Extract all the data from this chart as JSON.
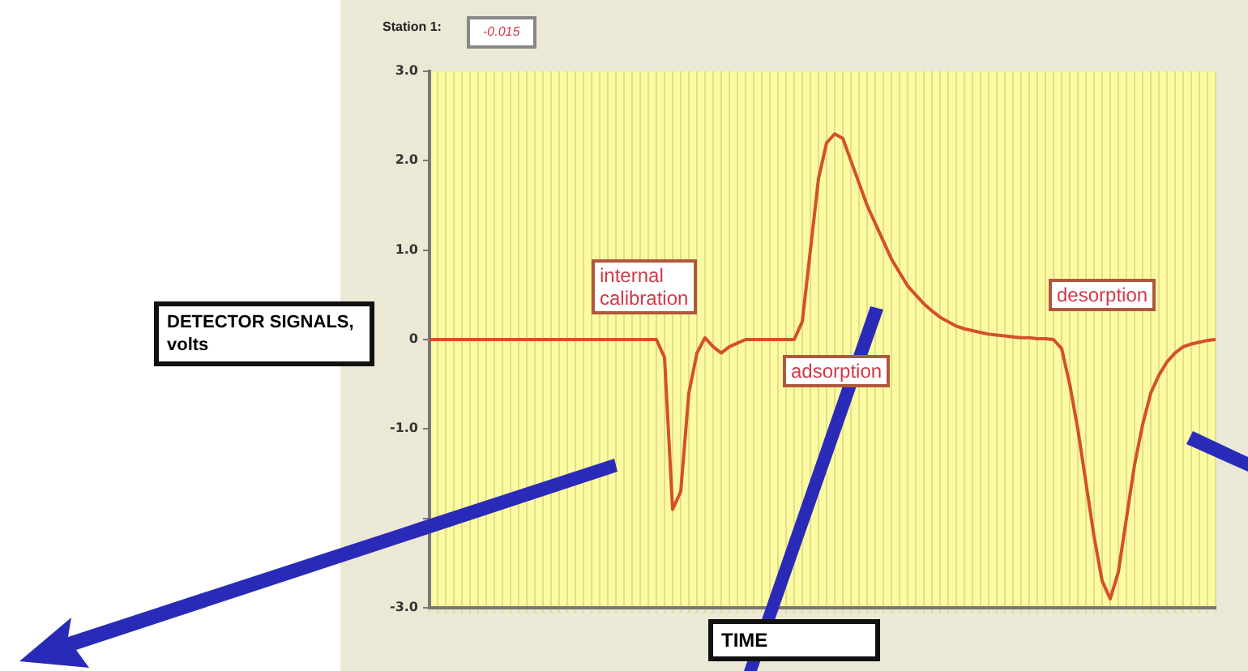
{
  "chart_data": {
    "type": "line",
    "xlabel": "TIME",
    "ylabel": "DETECTOR SIGNALS, volts",
    "annotations": [
      "Station 1:",
      "-0.015",
      "internal calibration",
      "adsorption",
      "desorption"
    ],
    "categories": [
      null,
      null,
      null,
      null,
      null,
      null,
      null,
      null,
      null,
      null,
      null,
      null,
      null,
      null,
      null,
      null,
      null,
      null,
      null,
      null,
      null,
      null,
      null,
      null,
      null,
      null,
      null,
      null,
      null,
      null,
      null,
      null,
      null,
      null,
      null,
      null,
      null,
      null,
      null,
      null,
      null,
      null,
      null,
      null,
      null,
      null,
      null,
      null,
      null,
      null,
      null,
      null,
      null,
      null,
      null,
      null,
      null,
      null,
      null,
      null,
      null,
      null,
      null,
      null,
      null,
      null,
      null,
      null,
      null,
      null,
      null,
      null,
      null,
      null,
      null,
      null,
      null,
      null,
      null,
      null,
      null,
      null,
      null,
      null,
      null,
      null,
      null,
      null,
      null,
      null,
      null,
      null,
      null,
      null,
      null,
      null,
      null,
      null
    ],
    "series": [
      {
        "color": "#d4502a",
        "values": [
          0,
          0,
          0,
          0,
          0,
          0,
          0,
          0,
          0,
          0,
          0,
          0,
          0,
          0,
          0,
          0,
          0,
          0,
          0,
          0,
          0,
          0,
          0,
          0,
          0,
          0,
          0,
          0,
          0,
          -0.2,
          -1.9,
          -1.7,
          -0.6,
          -0.15,
          0.02,
          -0.08,
          -0.15,
          -0.08,
          -0.04,
          0,
          0,
          0,
          0,
          0,
          0,
          0,
          0.2,
          1.0,
          1.8,
          2.2,
          2.3,
          2.25,
          2.0,
          1.75,
          1.5,
          1.3,
          1.1,
          0.9,
          0.75,
          0.6,
          0.5,
          0.4,
          0.32,
          0.25,
          0.2,
          0.15,
          0.12,
          0.1,
          0.08,
          0.06,
          0.05,
          0.04,
          0.03,
          0.02,
          0.02,
          0.01,
          0.01,
          0,
          -0.1,
          -0.5,
          -1.0,
          -1.6,
          -2.2,
          -2.7,
          -2.9,
          -2.6,
          -2.0,
          -1.4,
          -0.95,
          -0.6,
          -0.4,
          -0.25,
          -0.15,
          -0.08,
          -0.05,
          -0.03,
          -0.01,
          0
        ]
      }
    ],
    "ylim": [
      -3,
      3
    ],
    "yticks": [
      {
        "value": 3,
        "label": "3.0"
      },
      {
        "value": 2,
        "label": "2.0"
      },
      {
        "value": 1,
        "label": "1.0"
      },
      0,
      {
        "value": -1,
        "label": "-1.0"
      },
      {
        "value": -2,
        "label": null
      },
      {
        "value": -3,
        "label": "-3.0"
      }
    ],
    "grid": "x",
    "legend": false,
    "tick_labels": "y",
    "marker": "none",
    "line_style": "solid"
  }
}
